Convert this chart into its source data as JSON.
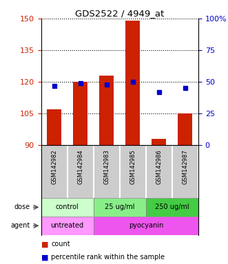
{
  "title": "GDS2522 / 4949_at",
  "samples": [
    "GSM142982",
    "GSM142984",
    "GSM142983",
    "GSM142985",
    "GSM142986",
    "GSM142987"
  ],
  "bar_heights": [
    107,
    120,
    123,
    149,
    93,
    105
  ],
  "bar_bottom": 90,
  "bar_color": "#cc2200",
  "percentile_values": [
    47,
    49,
    48,
    50,
    42,
    45
  ],
  "percentile_color": "#0000cc",
  "left_ylim": [
    90,
    150
  ],
  "left_yticks": [
    90,
    105,
    120,
    135,
    150
  ],
  "right_ylim": [
    0,
    100
  ],
  "right_yticks": [
    0,
    25,
    50,
    75,
    100
  ],
  "right_yticklabels": [
    "0",
    "25",
    "50",
    "75",
    "100%"
  ],
  "left_tick_color": "#cc2200",
  "right_tick_color": "#0000cc",
  "dose_colors": [
    "#ccffcc",
    "#88ee88",
    "#44cc44"
  ],
  "agent_colors": [
    "#ff99ff",
    "#ee55ee"
  ],
  "legend_count_color": "#cc2200",
  "legend_pct_color": "#0000cc",
  "sample_bg": "#cccccc",
  "fig_bg": "#ffffff"
}
